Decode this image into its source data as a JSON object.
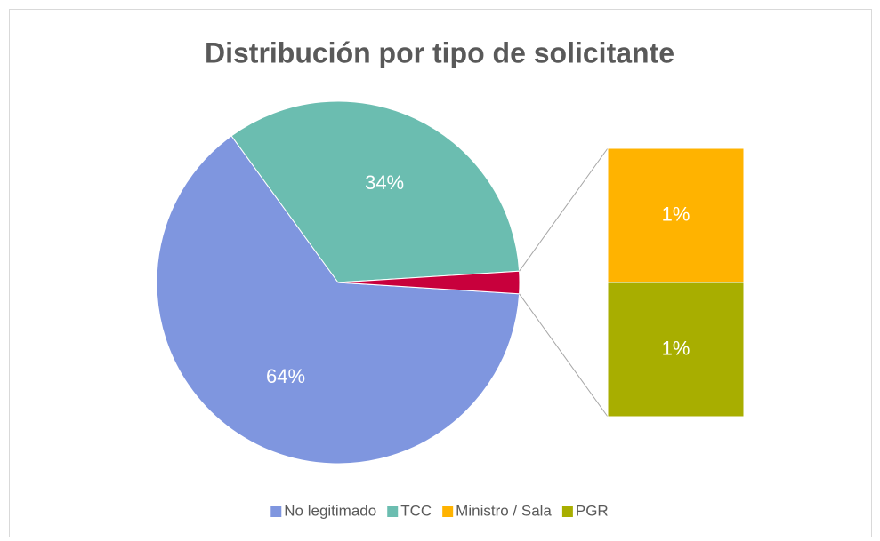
{
  "chart_data": {
    "type": "pie-of-bar",
    "title": "Distribución por tipo de solicitante",
    "categories": [
      "No legitimado",
      "TCC",
      "Ministro / Sala",
      "PGR"
    ],
    "values": [
      64,
      34,
      1,
      1
    ],
    "value_labels": [
      "64%",
      "34%",
      "1%",
      "1%"
    ],
    "colors": [
      "#7f96df",
      "#6bbdb0",
      "#ffb300",
      "#a8ae00"
    ],
    "other_color": "#c8003c",
    "second_plot_values": 2,
    "legend": "bottom"
  }
}
